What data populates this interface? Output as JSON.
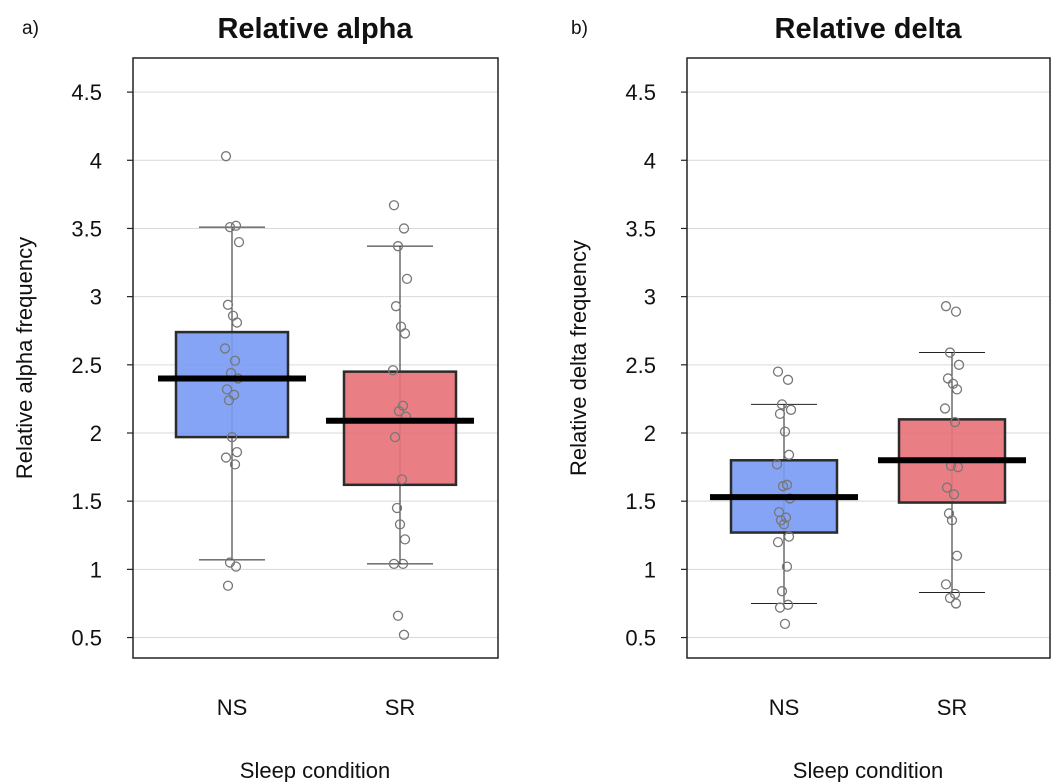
{
  "chart_data": [
    {
      "panel_label": "a)",
      "type": "box",
      "title": "Relative alpha",
      "xlabel": "Sleep condition",
      "ylabel": "Relative alpha frequency",
      "ylim": [
        0.35,
        4.75
      ],
      "yticks": [
        0.5,
        1,
        1.5,
        2,
        2.5,
        3,
        3.5,
        4,
        4.5
      ],
      "ytick_labels": [
        "0.5",
        "1",
        "1.5",
        "2",
        "2.5",
        "3",
        "3.5",
        "4",
        "4.5"
      ],
      "grid": true,
      "categories": [
        "NS",
        "SR"
      ],
      "boxes": [
        {
          "category": "NS",
          "color": "#7b9cf4",
          "q1": 1.97,
          "median": 2.4,
          "q3": 2.74,
          "whisker_low": 1.07,
          "whisker_high": 3.51,
          "points": [
            4.03,
            3.52,
            3.51,
            3.4,
            2.94,
            2.86,
            2.81,
            2.62,
            2.53,
            2.44,
            2.4,
            2.32,
            2.28,
            2.24,
            1.97,
            1.86,
            1.82,
            1.77,
            1.05,
            1.02,
            0.88
          ]
        },
        {
          "category": "SR",
          "color": "#e8737b",
          "q1": 1.62,
          "median": 2.09,
          "q3": 2.45,
          "whisker_low": 1.04,
          "whisker_high": 3.37,
          "points": [
            3.67,
            3.5,
            3.37,
            3.13,
            2.93,
            2.78,
            2.73,
            2.46,
            2.2,
            2.16,
            2.12,
            1.97,
            1.66,
            1.45,
            1.33,
            1.22,
            1.04,
            1.04,
            0.66,
            0.52
          ]
        }
      ]
    },
    {
      "panel_label": "b)",
      "type": "box",
      "title": "Relative delta",
      "xlabel": "Sleep condition",
      "ylabel": "Relative delta frequency",
      "ylim": [
        0.35,
        4.75
      ],
      "yticks": [
        0.5,
        1,
        1.5,
        2,
        2.5,
        3,
        3.5,
        4,
        4.5
      ],
      "ytick_labels": [
        "0.5",
        "1",
        "1.5",
        "2",
        "2.5",
        "3",
        "3.5",
        "4",
        "4.5"
      ],
      "grid": true,
      "categories": [
        "NS",
        "SR"
      ],
      "boxes": [
        {
          "category": "NS",
          "color": "#7b9cf4",
          "q1": 1.27,
          "median": 1.53,
          "q3": 1.8,
          "whisker_low": 0.75,
          "whisker_high": 2.21,
          "points": [
            2.45,
            2.39,
            2.21,
            2.17,
            2.14,
            2.01,
            1.84,
            1.77,
            1.62,
            1.61,
            1.52,
            1.42,
            1.38,
            1.36,
            1.33,
            1.24,
            1.2,
            1.02,
            0.84,
            0.74,
            0.72,
            0.6
          ]
        },
        {
          "category": "SR",
          "color": "#e8737b",
          "q1": 1.49,
          "median": 1.8,
          "q3": 2.1,
          "whisker_low": 0.83,
          "whisker_high": 2.59,
          "points": [
            2.93,
            2.89,
            2.59,
            2.5,
            2.4,
            2.36,
            2.32,
            2.18,
            2.08,
            1.76,
            1.75,
            1.6,
            1.55,
            1.41,
            1.36,
            1.1,
            0.89,
            0.82,
            0.79,
            0.75
          ]
        }
      ]
    }
  ]
}
